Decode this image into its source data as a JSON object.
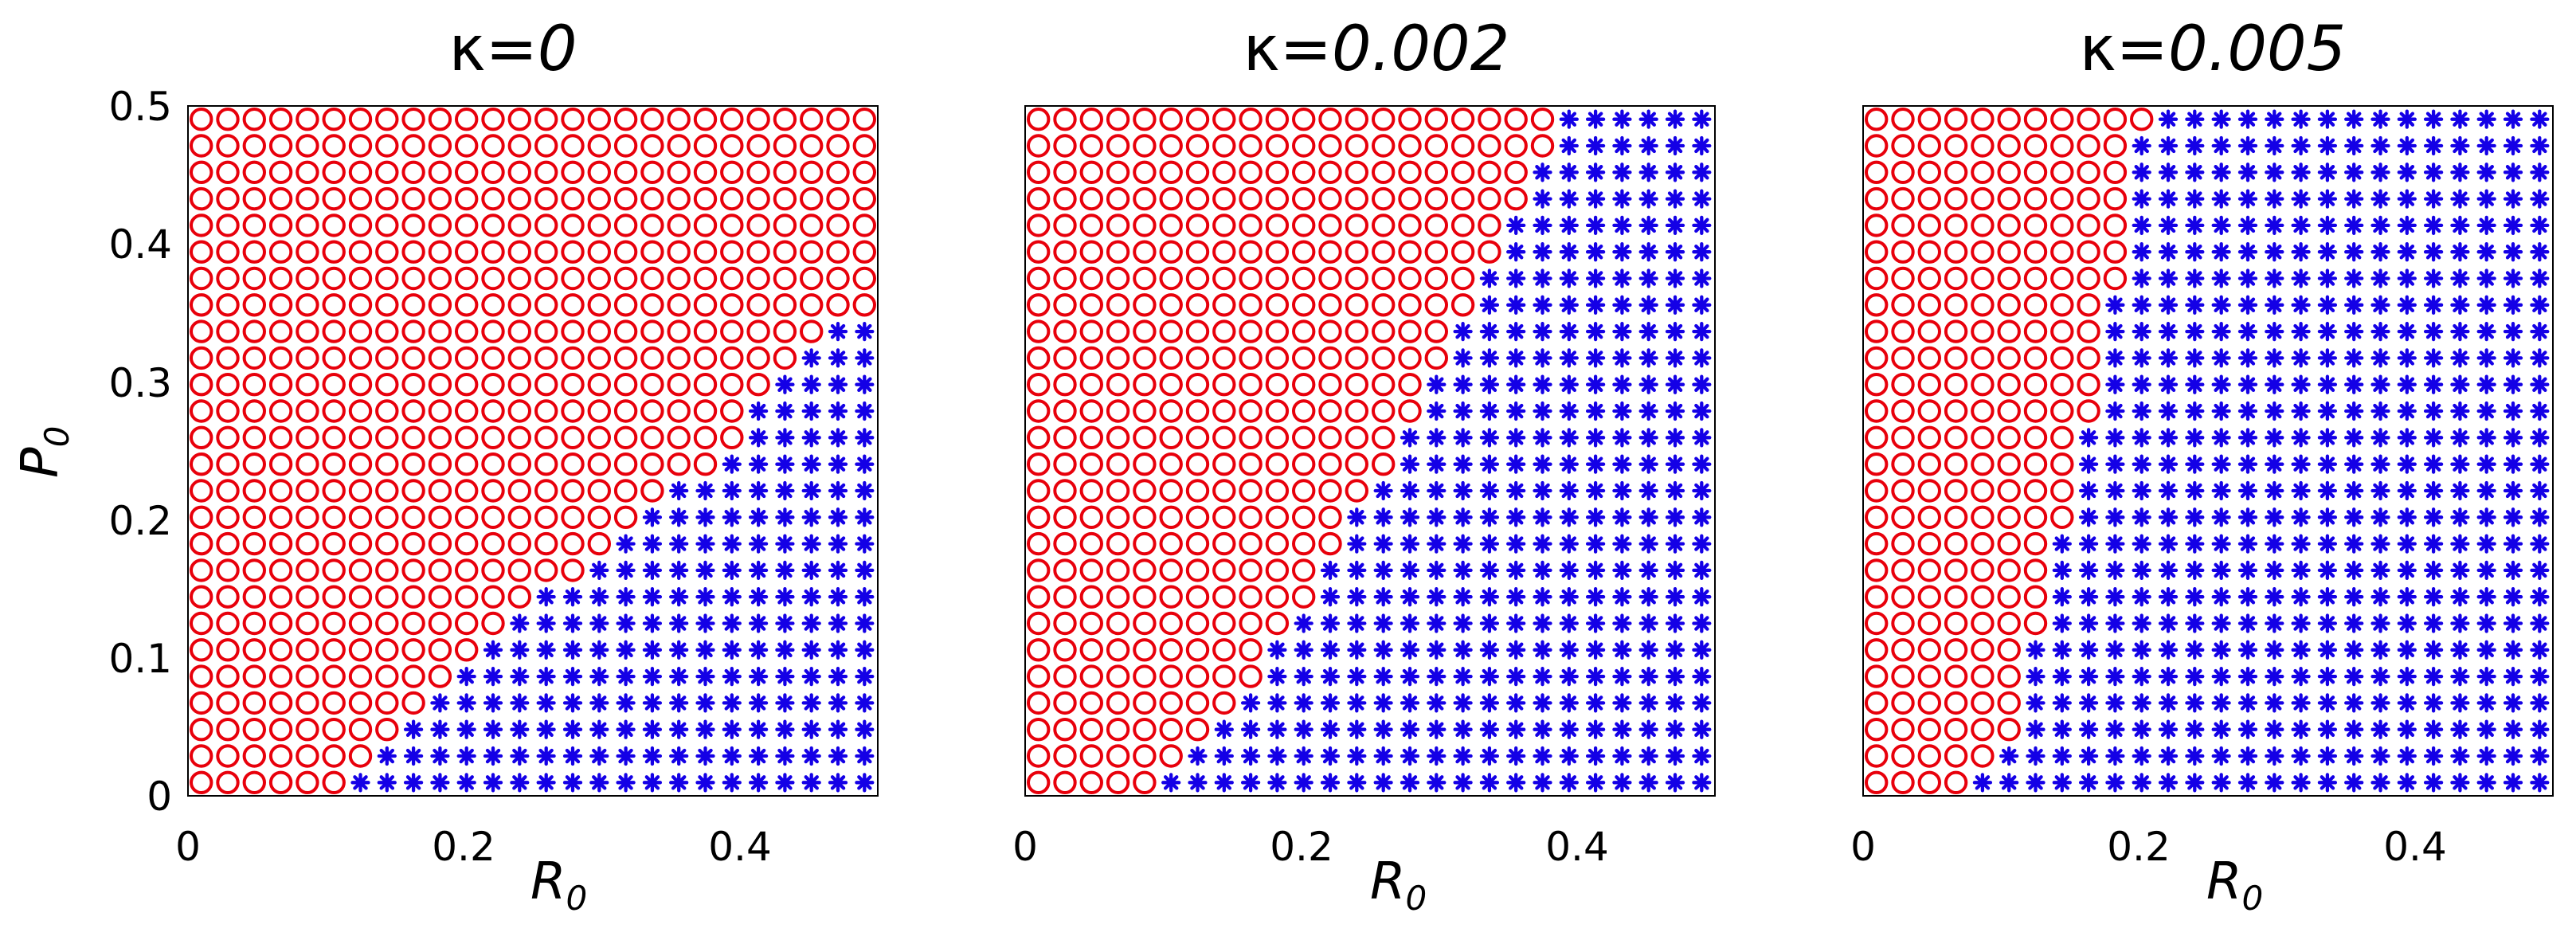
{
  "chart_data": [
    {
      "type": "scatter",
      "title_symbol": "κ",
      "title_value": "=0",
      "xlabel": "R",
      "xlabel_sub": "0",
      "ylabel": "P",
      "ylabel_sub": "0",
      "xlim": [
        0,
        0.5
      ],
      "ylim": [
        0,
        0.5
      ],
      "x_ticks": [
        "0",
        "0.2",
        "0.4"
      ],
      "y_ticks": [
        "0",
        "0.1",
        "0.2",
        "0.3",
        "0.4",
        "0.5"
      ],
      "grid": false,
      "grid_step": 0.02,
      "series": [
        {
          "marker": "circle",
          "color": "#e8000b"
        },
        {
          "marker": "asterisk",
          "color": "#1400e6"
        }
      ],
      "boundary": [
        {
          "p": 0.0,
          "r_min": 0.11
        },
        {
          "p": 0.02,
          "r_min": 0.13
        },
        {
          "p": 0.04,
          "r_min": 0.16
        },
        {
          "p": 0.06,
          "r_min": 0.18
        },
        {
          "p": 0.08,
          "r_min": 0.2
        },
        {
          "p": 0.1,
          "r_min": 0.22
        },
        {
          "p": 0.12,
          "r_min": 0.24
        },
        {
          "p": 0.14,
          "r_min": 0.26
        },
        {
          "p": 0.16,
          "r_min": 0.3
        },
        {
          "p": 0.18,
          "r_min": 0.32
        },
        {
          "p": 0.2,
          "r_min": 0.34
        },
        {
          "p": 0.22,
          "r_min": 0.36
        },
        {
          "p": 0.24,
          "r_min": 0.4
        },
        {
          "p": 0.26,
          "r_min": 0.42
        },
        {
          "p": 0.28,
          "r_min": 0.42
        },
        {
          "p": 0.3,
          "r_min": 0.44
        },
        {
          "p": 0.32,
          "r_min": 0.46
        },
        {
          "p": 0.34,
          "r_min": 0.48
        },
        {
          "p": 0.36,
          "r_min": 0.6
        }
      ]
    },
    {
      "type": "scatter",
      "title_symbol": "κ",
      "title_value": "=0.002",
      "xlabel": "R",
      "xlabel_sub": "0",
      "ylabel": "",
      "ylabel_sub": "",
      "xlim": [
        0,
        0.5
      ],
      "ylim": [
        0,
        0.5
      ],
      "x_ticks": [
        "0",
        "0.2",
        "0.4"
      ],
      "y_ticks": [],
      "grid": false,
      "grid_step": 0.02,
      "series": [
        {
          "marker": "circle",
          "color": "#e8000b"
        },
        {
          "marker": "asterisk",
          "color": "#1400e6"
        }
      ],
      "boundary": [
        {
          "p": 0.0,
          "r_min": 0.1
        },
        {
          "p": 0.02,
          "r_min": 0.12
        },
        {
          "p": 0.04,
          "r_min": 0.14
        },
        {
          "p": 0.06,
          "r_min": 0.16
        },
        {
          "p": 0.08,
          "r_min": 0.18
        },
        {
          "p": 0.1,
          "r_min": 0.18
        },
        {
          "p": 0.12,
          "r_min": 0.2
        },
        {
          "p": 0.14,
          "r_min": 0.22
        },
        {
          "p": 0.16,
          "r_min": 0.22
        },
        {
          "p": 0.18,
          "r_min": 0.24
        },
        {
          "p": 0.2,
          "r_min": 0.24
        },
        {
          "p": 0.22,
          "r_min": 0.26
        },
        {
          "p": 0.24,
          "r_min": 0.28
        },
        {
          "p": 0.26,
          "r_min": 0.28
        },
        {
          "p": 0.28,
          "r_min": 0.3
        },
        {
          "p": 0.3,
          "r_min": 0.3
        },
        {
          "p": 0.32,
          "r_min": 0.32
        },
        {
          "p": 0.34,
          "r_min": 0.32
        },
        {
          "p": 0.36,
          "r_min": 0.34
        },
        {
          "p": 0.38,
          "r_min": 0.34
        },
        {
          "p": 0.4,
          "r_min": 0.36
        },
        {
          "p": 0.42,
          "r_min": 0.36
        },
        {
          "p": 0.44,
          "r_min": 0.38
        },
        {
          "p": 0.46,
          "r_min": 0.38
        },
        {
          "p": 0.48,
          "r_min": 0.4
        },
        {
          "p": 0.5,
          "r_min": 0.4
        }
      ]
    },
    {
      "type": "scatter",
      "title_symbol": "κ",
      "title_value": "=0.005",
      "xlabel": "R",
      "xlabel_sub": "0",
      "ylabel": "",
      "ylabel_sub": "",
      "xlim": [
        0,
        0.5
      ],
      "ylim": [
        0,
        0.5
      ],
      "x_ticks": [
        "0",
        "0.2",
        "0.4"
      ],
      "y_ticks": [],
      "grid": false,
      "grid_step": 0.02,
      "series": [
        {
          "marker": "circle",
          "color": "#e8000b"
        },
        {
          "marker": "asterisk",
          "color": "#1400e6"
        }
      ],
      "boundary": [
        {
          "p": 0.0,
          "r_min": 0.08
        },
        {
          "p": 0.02,
          "r_min": 0.1
        },
        {
          "p": 0.04,
          "r_min": 0.12
        },
        {
          "p": 0.06,
          "r_min": 0.12
        },
        {
          "p": 0.08,
          "r_min": 0.12
        },
        {
          "p": 0.1,
          "r_min": 0.12
        },
        {
          "p": 0.12,
          "r_min": 0.14
        },
        {
          "p": 0.14,
          "r_min": 0.14
        },
        {
          "p": 0.16,
          "r_min": 0.14
        },
        {
          "p": 0.18,
          "r_min": 0.14
        },
        {
          "p": 0.2,
          "r_min": 0.16
        },
        {
          "p": 0.22,
          "r_min": 0.16
        },
        {
          "p": 0.24,
          "r_min": 0.16
        },
        {
          "p": 0.26,
          "r_min": 0.16
        },
        {
          "p": 0.28,
          "r_min": 0.18
        },
        {
          "p": 0.3,
          "r_min": 0.18
        },
        {
          "p": 0.32,
          "r_min": 0.18
        },
        {
          "p": 0.34,
          "r_min": 0.18
        },
        {
          "p": 0.36,
          "r_min": 0.18
        },
        {
          "p": 0.38,
          "r_min": 0.2
        },
        {
          "p": 0.4,
          "r_min": 0.2
        },
        {
          "p": 0.42,
          "r_min": 0.2
        },
        {
          "p": 0.44,
          "r_min": 0.2
        },
        {
          "p": 0.46,
          "r_min": 0.2
        },
        {
          "p": 0.48,
          "r_min": 0.2
        },
        {
          "p": 0.5,
          "r_min": 0.22
        }
      ]
    }
  ]
}
